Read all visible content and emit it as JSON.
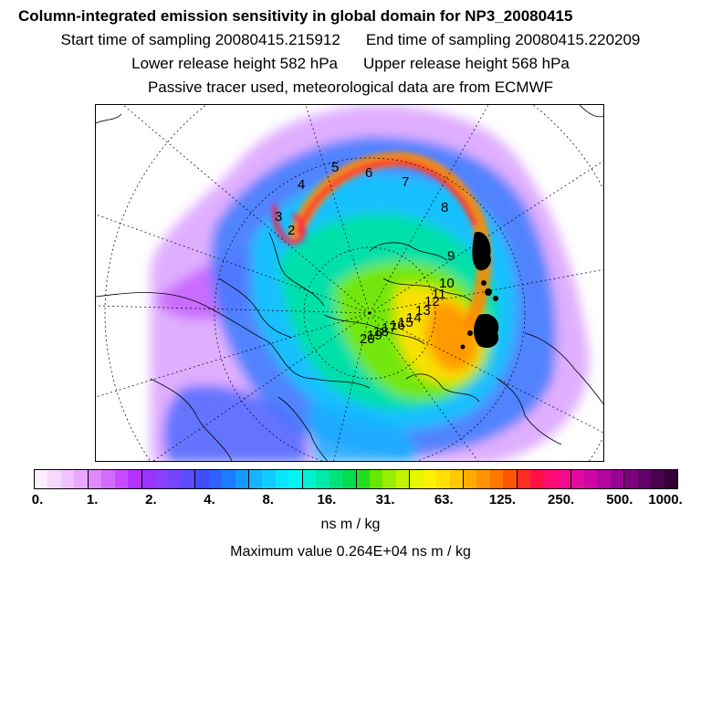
{
  "header": {
    "title": "Column-integrated emission sensitivity in global domain for NP3_20080415",
    "start_time": "Start time of sampling 20080415.215912",
    "end_time": "End time of sampling 20080415.220209",
    "lower_release": "Lower release height  582 hPa",
    "upper_release": "Upper release height  568 hPa",
    "tracer_note": "Passive tracer used, meteorological data are from ECMWF"
  },
  "map": {
    "projection": "north-polar-stereographic",
    "trajectory_labels": [
      {
        "text": "5"
      },
      {
        "text": "6"
      },
      {
        "text": "7"
      },
      {
        "text": "4"
      },
      {
        "text": "8"
      },
      {
        "text": "3"
      },
      {
        "text": "2"
      },
      {
        "text": "9"
      },
      {
        "text": "10"
      },
      {
        "text": "11"
      },
      {
        "text": "12"
      },
      {
        "text": "13"
      },
      {
        "text": "14"
      },
      {
        "text": "15"
      },
      {
        "text": "16"
      },
      {
        "text": "17"
      },
      {
        "text": "18"
      },
      {
        "text": "19"
      },
      {
        "text": "20"
      }
    ],
    "colors": {
      "land_outline": "#000000",
      "graticule": "#000000"
    }
  },
  "colorbar": {
    "tick_labels": [
      "0.",
      "1.",
      "2.",
      "4.",
      "8.",
      "16.",
      "31.",
      "63.",
      "125.",
      "250.",
      "500.",
      "1000."
    ],
    "colors": [
      "#fbeeff",
      "#f6d9ff",
      "#f0c2ff",
      "#e9a8ff",
      "#df88ff",
      "#d46bff",
      "#c84cff",
      "#b533ff",
      "#9b33ff",
      "#8a40ff",
      "#7444ff",
      "#5a4cff",
      "#3f4fff",
      "#2c62ff",
      "#1a7cff",
      "#1598ff",
      "#14b4ff",
      "#10cdff",
      "#08e6ff",
      "#00f7f5",
      "#00f2d2",
      "#00eaa8",
      "#00e37c",
      "#00dd4e",
      "#22dd1f",
      "#66e600",
      "#99ee00",
      "#c3f200",
      "#e6f500",
      "#fbf200",
      "#ffe000",
      "#ffc800",
      "#ffae00",
      "#ff9400",
      "#ff7600",
      "#ff5500",
      "#ff2d22",
      "#ff1146",
      "#ff0a70",
      "#f40a8f",
      "#e3099f",
      "#cd07a6",
      "#b405a0",
      "#980492",
      "#7d027e",
      "#610266",
      "#4a014f",
      "#330034"
    ],
    "units": "ns m / kg",
    "max_value": "Maximum value  0.264E+04 ns m / kg"
  }
}
